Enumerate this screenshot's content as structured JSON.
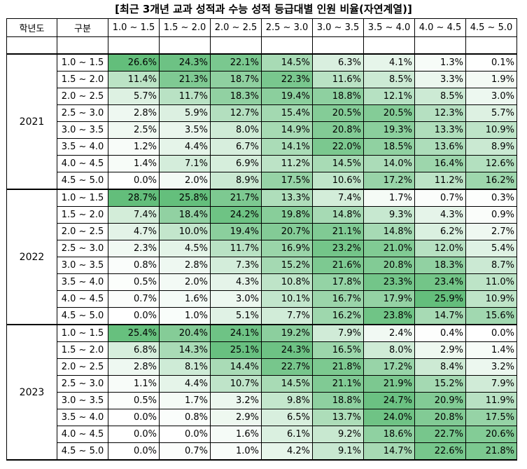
{
  "title": "[최근 3개년 교과 성적과 수능 성적 등급대별 인원 비율(자연계열)]",
  "headers": [
    "학년도",
    "구분",
    "1.0 ~ 1.5",
    "1.5 ~ 2.0",
    "2.0 ~ 2.5",
    "2.5 ~ 3.0",
    "3.0 ~ 3.5",
    "3.5 ~ 4.0",
    "4.0 ~ 4.5",
    "4.5 ~ 5.0"
  ],
  "ranges": [
    "1.0 ~ 1.5",
    "1.5 ~ 2.0",
    "2.0 ~ 2.5",
    "2.5 ~ 3.0",
    "3.0 ~ 3.5",
    "3.5 ~ 4.0",
    "4.0 ~ 4.5",
    "4.5 ~ 5.0"
  ],
  "years": [
    {
      "year": "2021",
      "rows": [
        [
          "26.6%",
          "24.3%",
          "22.1%",
          "14.5%",
          "6.3%",
          "4.1%",
          "1.3%",
          "0.1%"
        ],
        [
          "11.4%",
          "21.3%",
          "18.7%",
          "22.3%",
          "11.6%",
          "8.5%",
          "3.3%",
          "1.9%"
        ],
        [
          "5.7%",
          "11.7%",
          "18.3%",
          "19.4%",
          "18.8%",
          "12.1%",
          "8.5%",
          "3.0%"
        ],
        [
          "2.8%",
          "5.9%",
          "12.7%",
          "15.4%",
          "20.5%",
          "20.5%",
          "12.3%",
          "5.7%"
        ],
        [
          "2.5%",
          "3.5%",
          "8.0%",
          "14.9%",
          "20.8%",
          "19.3%",
          "13.3%",
          "10.9%"
        ],
        [
          "1.2%",
          "4.4%",
          "6.7%",
          "14.1%",
          "22.0%",
          "18.5%",
          "13.6%",
          "8.9%"
        ],
        [
          "1.4%",
          "7.1%",
          "6.9%",
          "11.2%",
          "14.5%",
          "14.0%",
          "16.4%",
          "12.6%"
        ],
        [
          "0.0%",
          "2.0%",
          "8.9%",
          "17.5%",
          "10.6%",
          "17.2%",
          "11.2%",
          "16.2%"
        ]
      ]
    },
    {
      "year": "2022",
      "rows": [
        [
          "28.7%",
          "25.8%",
          "21.7%",
          "13.3%",
          "7.4%",
          "1.7%",
          "0.7%",
          "0.3%"
        ],
        [
          "7.4%",
          "18.4%",
          "24.2%",
          "19.8%",
          "14.8%",
          "9.3%",
          "4.3%",
          "0.9%"
        ],
        [
          "4.7%",
          "10.0%",
          "19.4%",
          "20.7%",
          "21.1%",
          "14.8%",
          "6.2%",
          "2.7%"
        ],
        [
          "2.3%",
          "4.5%",
          "11.7%",
          "16.9%",
          "23.2%",
          "21.0%",
          "12.0%",
          "5.4%"
        ],
        [
          "0.8%",
          "2.8%",
          "7.3%",
          "15.2%",
          "21.6%",
          "20.8%",
          "18.3%",
          "8.7%"
        ],
        [
          "0.5%",
          "2.0%",
          "4.3%",
          "10.8%",
          "17.8%",
          "23.3%",
          "23.4%",
          "11.0%"
        ],
        [
          "0.7%",
          "1.6%",
          "3.0%",
          "10.1%",
          "16.7%",
          "17.9%",
          "25.9%",
          "10.9%"
        ],
        [
          "0.0%",
          "1.0%",
          "5.1%",
          "7.7%",
          "16.2%",
          "23.8%",
          "14.7%",
          "15.6%"
        ]
      ]
    },
    {
      "year": "2023",
      "rows": [
        [
          "25.4%",
          "20.4%",
          "24.1%",
          "19.2%",
          "7.9%",
          "2.4%",
          "0.4%",
          "0.0%"
        ],
        [
          "6.8%",
          "14.3%",
          "25.1%",
          "24.3%",
          "16.5%",
          "8.0%",
          "2.9%",
          "1.4%"
        ],
        [
          "2.8%",
          "8.1%",
          "14.4%",
          "22.7%",
          "21.8%",
          "17.2%",
          "8.4%",
          "3.2%"
        ],
        [
          "1.1%",
          "4.4%",
          "10.7%",
          "14.5%",
          "21.1%",
          "21.9%",
          "15.2%",
          "7.9%"
        ],
        [
          "0.5%",
          "1.7%",
          "3.2%",
          "9.8%",
          "18.8%",
          "24.7%",
          "20.9%",
          "11.9%"
        ],
        [
          "0.0%",
          "0.8%",
          "2.9%",
          "6.5%",
          "13.7%",
          "24.0%",
          "20.8%",
          "17.5%"
        ],
        [
          "0.0%",
          "0.0%",
          "1.6%",
          "6.1%",
          "9.2%",
          "18.6%",
          "22.7%",
          "20.6%"
        ],
        [
          "0.0%",
          "0.7%",
          "1.0%",
          "4.2%",
          "9.1%",
          "14.7%",
          "22.6%",
          "21.8%"
        ]
      ]
    }
  ]
}
